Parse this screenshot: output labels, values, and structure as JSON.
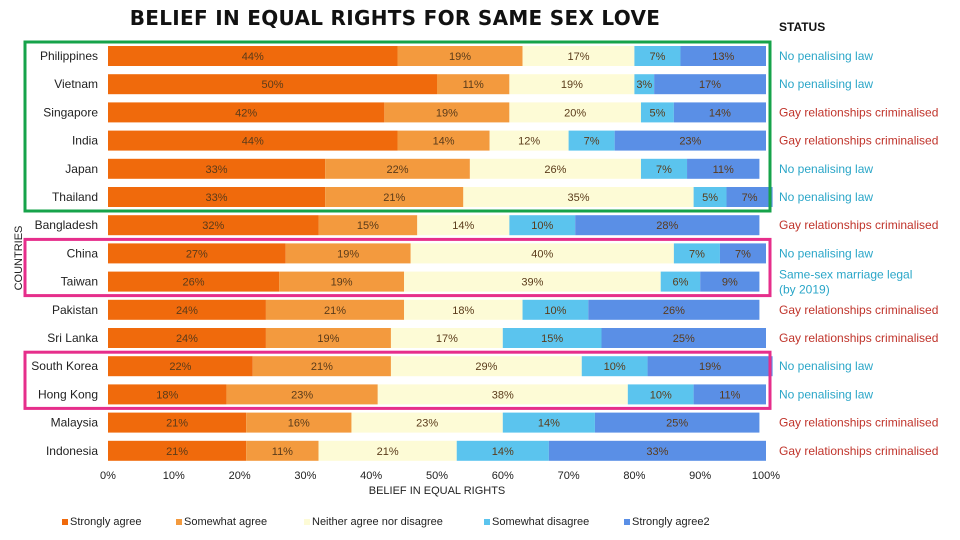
{
  "title": "BELIEF IN EQUAL RIGHTS FOR SAME SEX LOVE",
  "status_header": "STATUS",
  "colors": {
    "Strongly agree": "#f06a0c",
    "Somewhat agree": "#f39a3e",
    "Neither agree nor disagree": "#fdfbd6",
    "Somewhat disagree": "#5bc4ee",
    "Strongly agree2": "#5a8fe6",
    "status_green": "#2aa6c8",
    "status_red": "#c0342b",
    "box_green": "#16a34a",
    "box_pink": "#e62e8b"
  },
  "chart_data": {
    "type": "bar",
    "orientation": "horizontal",
    "stacked": true,
    "title": "BELIEF IN EQUAL RIGHTS FOR SAME SEX LOVE",
    "xlabel": "BELIEF IN EQUAL RIGHTS",
    "ylabel": "COUNTRIES",
    "xlim": [
      0,
      100
    ],
    "x_ticks": [
      "0%",
      "10%",
      "20%",
      "30%",
      "40%",
      "50%",
      "60%",
      "70%",
      "80%",
      "90%",
      "100%"
    ],
    "legend_position": "bottom",
    "categories": [
      "Philippines",
      "Vietnam",
      "Singapore",
      "India",
      "Japan",
      "Thailand",
      "Bangladesh",
      "China",
      "Taiwan",
      "Pakistan",
      "Sri Lanka",
      "South Korea",
      "Hong Kong",
      "Malaysia",
      "Indonesia"
    ],
    "series": [
      {
        "name": "Strongly agree",
        "values": [
          44,
          50,
          42,
          44,
          33,
          33,
          32,
          27,
          26,
          24,
          24,
          22,
          18,
          21,
          21
        ]
      },
      {
        "name": "Somewhat agree",
        "values": [
          19,
          11,
          19,
          14,
          22,
          21,
          15,
          19,
          19,
          21,
          19,
          21,
          23,
          16,
          11
        ]
      },
      {
        "name": "Neither agree nor disagree",
        "values": [
          17,
          19,
          20,
          12,
          26,
          35,
          14,
          40,
          39,
          18,
          17,
          29,
          38,
          23,
          21
        ]
      },
      {
        "name": "Somewhat disagree",
        "values": [
          7,
          3,
          5,
          7,
          7,
          5,
          10,
          7,
          6,
          10,
          15,
          10,
          10,
          14,
          14
        ]
      },
      {
        "name": "Strongly agree2",
        "values": [
          13,
          17,
          14,
          23,
          11,
          7,
          28,
          7,
          9,
          26,
          25,
          19,
          11,
          25,
          33
        ]
      }
    ],
    "status": [
      {
        "text": "No penalising law",
        "kind": "green"
      },
      {
        "text": "No penalising law",
        "kind": "green"
      },
      {
        "text": "Gay relationships criminalised",
        "kind": "red"
      },
      {
        "text": "Gay relationships criminalised",
        "kind": "red"
      },
      {
        "text": "No penalising law",
        "kind": "green"
      },
      {
        "text": "No penalising law",
        "kind": "green"
      },
      {
        "text": "Gay relationships criminalised",
        "kind": "red"
      },
      {
        "text": "No penalising law",
        "kind": "green"
      },
      {
        "text": "Same-sex marriage legal (by 2019)",
        "kind": "green"
      },
      {
        "text": "Gay relationships criminalised",
        "kind": "red"
      },
      {
        "text": "Gay relationships criminalised",
        "kind": "red"
      },
      {
        "text": "No penalising law",
        "kind": "green"
      },
      {
        "text": "No penalising law",
        "kind": "green"
      },
      {
        "text": "Gay relationships criminalised",
        "kind": "red"
      },
      {
        "text": "Gay relationships criminalised",
        "kind": "red"
      }
    ],
    "groups": [
      {
        "color": "box_green",
        "from": 0,
        "to": 5
      },
      {
        "color": "box_pink",
        "from": 7,
        "to": 8
      },
      {
        "color": "box_pink",
        "from": 11,
        "to": 12
      }
    ]
  }
}
